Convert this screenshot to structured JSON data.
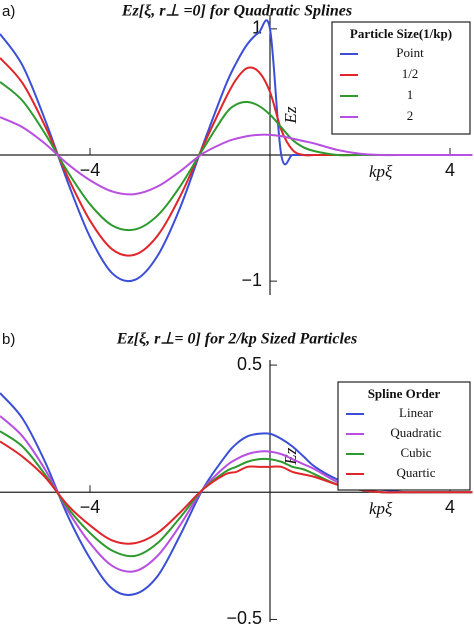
{
  "chart_data": [
    {
      "type": "line",
      "panel_label": "a)",
      "title": "Ez[ξ, r⊥ =0] for Quadratic Splines",
      "x_label": "kpξ",
      "y_label": "Ez",
      "legend_title": "Particle Size(1/kp)",
      "legend": "upper right",
      "x": [
        -6,
        -5.5,
        -5,
        -4.5,
        -4,
        -3.5,
        -3,
        -2.5,
        -2,
        -1.5,
        -1,
        -0.75,
        -0.5,
        -0.25,
        0,
        0.25,
        0.5,
        0.75,
        1,
        1.5,
        2,
        2.5,
        3,
        3.5,
        4,
        4.5
      ],
      "xlim": [
        -6,
        4.5
      ],
      "ylim": [
        -1.11,
        1.11
      ],
      "xticks": [
        {
          "value": -4,
          "label": "−4"
        },
        4
      ],
      "yticks": [
        {
          "value": -1,
          "label": "−1"
        },
        1
      ],
      "series": [
        {
          "name": "Point",
          "color": "#3a4fd6",
          "values": [
            0.96,
            0.71,
            0.28,
            -0.21,
            -0.65,
            -0.94,
            -0.99,
            -0.8,
            -0.42,
            0.07,
            0.54,
            0.73,
            0.88,
            0.97,
            1.0,
            0,
            0,
            0,
            0,
            0,
            0,
            0,
            0,
            0,
            0,
            0
          ]
        },
        {
          "name": "1/2",
          "color": "#e0262a",
          "values": [
            0.77,
            0.57,
            0.23,
            -0.17,
            -0.52,
            -0.75,
            -0.79,
            -0.64,
            -0.33,
            0.06,
            0.44,
            0.6,
            0.69,
            0.66,
            0.5,
            0.2,
            0.04,
            0,
            0,
            0,
            0,
            0,
            0,
            0,
            0,
            0
          ]
        },
        {
          "name": "1",
          "color": "#2e9a2e",
          "values": [
            0.58,
            0.43,
            0.17,
            -0.13,
            -0.39,
            -0.56,
            -0.59,
            -0.48,
            -0.25,
            0.04,
            0.32,
            0.4,
            0.42,
            0.39,
            0.32,
            0.22,
            0.12,
            0.06,
            0.03,
            0,
            0,
            0,
            0,
            0,
            0,
            0
          ]
        },
        {
          "name": "2",
          "color": "#b84fe0",
          "values": [
            0.3,
            0.22,
            0.09,
            -0.07,
            -0.2,
            -0.29,
            -0.31,
            -0.25,
            -0.13,
            0.01,
            0.1,
            0.13,
            0.15,
            0.16,
            0.16,
            0.15,
            0.13,
            0.11,
            0.09,
            0.04,
            0.01,
            0,
            0,
            0,
            0,
            0
          ]
        }
      ]
    },
    {
      "type": "line",
      "panel_label": "b)",
      "title": "Ez[ξ, r⊥= 0] for 2/kp Sized Particles",
      "x_label": "kpξ",
      "y_label": "Ez",
      "legend_title": "Spline Order",
      "legend": "upper right",
      "x": [
        -6,
        -5.5,
        -5,
        -4.5,
        -4,
        -3.5,
        -3,
        -2.5,
        -2,
        -1.5,
        -1,
        -0.75,
        -0.5,
        -0.25,
        0,
        0.25,
        0.5,
        0.75,
        1,
        1.5,
        2,
        2.5,
        3,
        3.5,
        4,
        4.5
      ],
      "xlim": [
        -6,
        4.5
      ],
      "ylim": [
        -0.51,
        0.52
      ],
      "xticks": [
        {
          "value": -4,
          "label": "−4"
        },
        4
      ],
      "yticks": [
        {
          "value": -0.5,
          "label": "−0.5"
        },
        0.5
      ],
      "series": [
        {
          "name": "Linear",
          "color": "#3a4fd6",
          "values": [
            0.39,
            0.29,
            0.12,
            -0.09,
            -0.26,
            -0.38,
            -0.4,
            -0.33,
            -0.17,
            0.01,
            0.14,
            0.19,
            0.22,
            0.23,
            0.23,
            0.21,
            0.18,
            0.14,
            0.1,
            0.05,
            0.02,
            0.01,
            0,
            0,
            0,
            0
          ]
        },
        {
          "name": "Quadratic",
          "color": "#b84fe0",
          "values": [
            0.3,
            0.22,
            0.09,
            -0.07,
            -0.2,
            -0.29,
            -0.31,
            -0.25,
            -0.13,
            0.01,
            0.1,
            0.13,
            0.15,
            0.16,
            0.16,
            0.15,
            0.13,
            0.11,
            0.09,
            0.04,
            0.01,
            0,
            0,
            0,
            0,
            0
          ]
        },
        {
          "name": "Cubic",
          "color": "#2e9a2e",
          "values": [
            0.24,
            0.18,
            0.07,
            -0.06,
            -0.16,
            -0.23,
            -0.25,
            -0.2,
            -0.1,
            0.01,
            0.08,
            0.1,
            0.12,
            0.13,
            0.13,
            0.12,
            0.1,
            0.09,
            0.07,
            0.03,
            0.01,
            0,
            0,
            0,
            0,
            0
          ]
        },
        {
          "name": "Quartic",
          "color": "#e0262a",
          "values": [
            0.2,
            0.14,
            0.06,
            -0.05,
            -0.13,
            -0.19,
            -0.2,
            -0.16,
            -0.08,
            0.01,
            0.07,
            0.08,
            0.1,
            0.1,
            0.1,
            0.1,
            0.08,
            0.07,
            0.06,
            0.03,
            0.01,
            0,
            0,
            0,
            0,
            0
          ]
        }
      ]
    }
  ]
}
